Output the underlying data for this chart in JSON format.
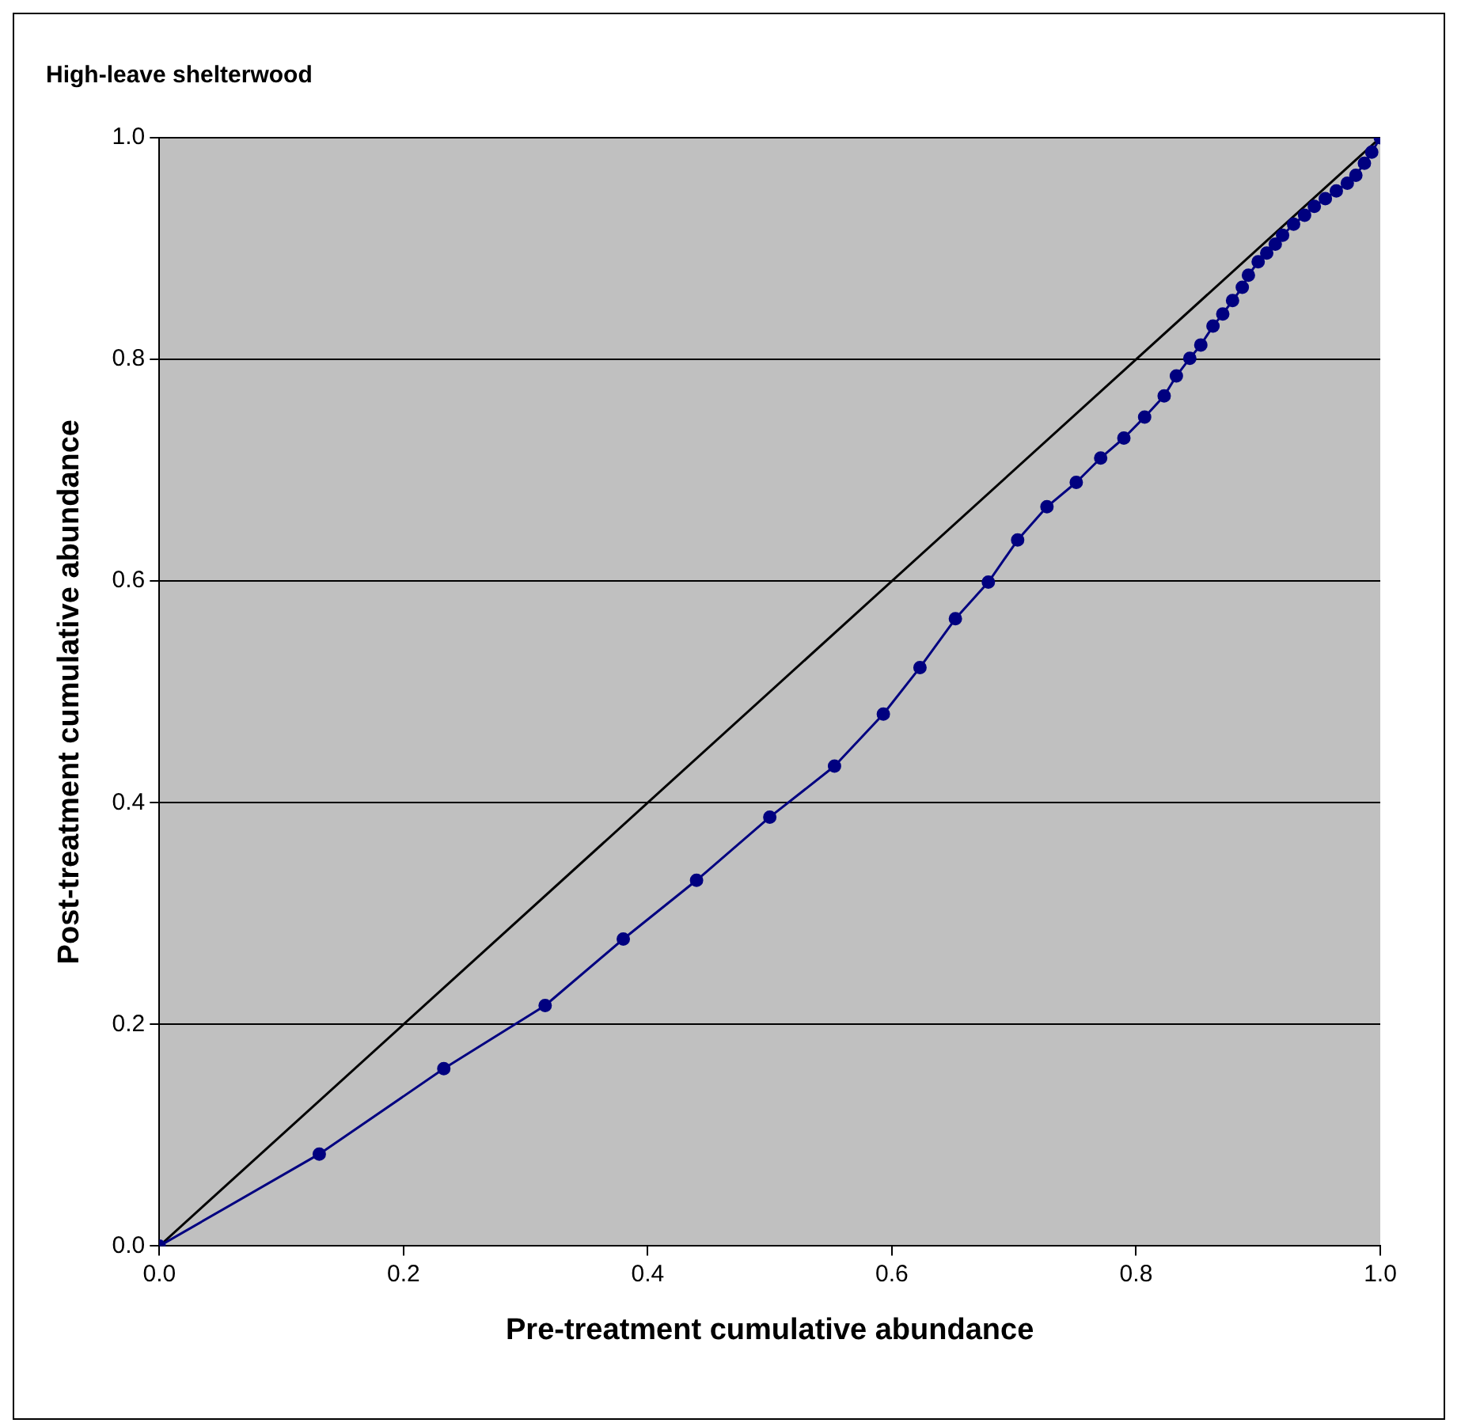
{
  "chart_data": {
    "type": "line",
    "title": "High-leave shelterwood",
    "xlabel": "Pre-treatment cumulative abundance",
    "ylabel": "Post-treatment cumulative abundance",
    "xlim": [
      0,
      1
    ],
    "ylim": [
      0,
      1
    ],
    "xticks": [
      {
        "value": 0,
        "label": "0.0"
      },
      {
        "value": 0.2,
        "label": "0.2"
      },
      {
        "value": 0.4,
        "label": "0.4"
      },
      {
        "value": 0.6,
        "label": "0.6"
      },
      {
        "value": 0.8,
        "label": "0.8"
      },
      {
        "value": 1,
        "label": "1.0"
      }
    ],
    "yticks": [
      {
        "value": 0,
        "label": "0.0"
      },
      {
        "value": 0.2,
        "label": "0.2"
      },
      {
        "value": 0.4,
        "label": "0.4"
      },
      {
        "value": 0.6,
        "label": "0.6"
      },
      {
        "value": 0.8,
        "label": "0.8"
      },
      {
        "value": 1,
        "label": "1.0"
      }
    ],
    "grid": "y",
    "legend": false,
    "series": [
      {
        "color": "#000080",
        "marker": "circle",
        "x": [
          0,
          0.131,
          0.233,
          0.316,
          0.38,
          0.44,
          0.5,
          0.553,
          0.593,
          0.623,
          0.652,
          0.679,
          0.703,
          0.727,
          0.751,
          0.771,
          0.79,
          0.807,
          0.823,
          0.833,
          0.844,
          0.853,
          0.863,
          0.871,
          0.879,
          0.887,
          0.892,
          0.9,
          0.907,
          0.914,
          0.92,
          0.929,
          0.938,
          0.946,
          0.955,
          0.964,
          0.973,
          0.98,
          0.987,
          0.993,
          1
        ],
        "values": [
          0,
          0.083,
          0.16,
          0.217,
          0.277,
          0.33,
          0.387,
          0.433,
          0.48,
          0.522,
          0.566,
          0.599,
          0.637,
          0.667,
          0.689,
          0.711,
          0.729,
          0.748,
          0.767,
          0.785,
          0.801,
          0.813,
          0.83,
          0.841,
          0.853,
          0.865,
          0.876,
          0.888,
          0.896,
          0.904,
          0.912,
          0.922,
          0.93,
          0.938,
          0.945,
          0.952,
          0.959,
          0.966,
          0.977,
          0.987,
          1
        ]
      },
      {
        "color": "#000000",
        "marker": "none",
        "x": [
          0,
          1
        ],
        "values": [
          0,
          1
        ]
      }
    ]
  }
}
